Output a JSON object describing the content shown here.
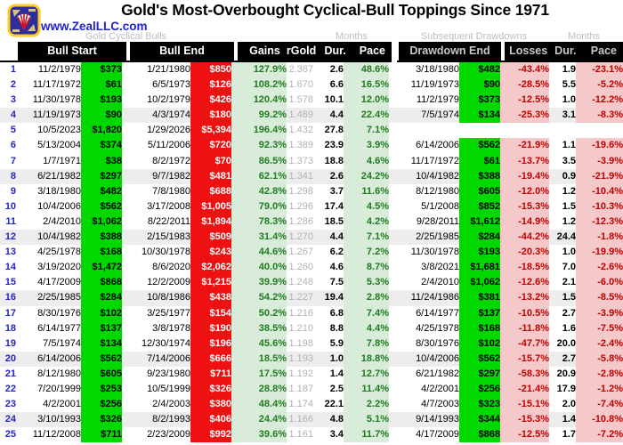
{
  "header": {
    "title": "Gold's Most-Overbought Cyclical-Bull Toppings Since 1971",
    "logo_text": "www.ZealLLC.com"
  },
  "group_labels": {
    "bulls": "Gold Cyclical Bulls",
    "months1": "Months",
    "drawdowns": "Subsequent Drawdowns",
    "months2": "Months"
  },
  "columns": {
    "bull_start": "Bull Start",
    "bull_end": "Bull End",
    "gains": "Gains",
    "rgold": "rGold",
    "dur": "Dur.",
    "pace": "Pace",
    "drawdown_end": "Drawdown End",
    "losses": "Losses",
    "dd_dur": "Dur.",
    "dd_pace": "Pace"
  },
  "colors": {
    "price_start_bg": "#00d800",
    "price_top_bg": "#ee1111",
    "gain_bg": "#d9ecd9",
    "gain_text": "#1f7a1f",
    "loss_bg": "#f5c9c9",
    "loss_text": "#c00000",
    "row_number_text": "#2424cc",
    "rgold_text": "#b2b2b2",
    "header_bg": "#000000",
    "header_drawdown_text": "#c8c8c8",
    "group_label_text": "#bdbdbd",
    "shade_row_bg": "#ededed",
    "logo_text_blue": "#2222cc"
  },
  "chart_data": {
    "type": "table",
    "title": "Gold's Most-Overbought Cyclical-Bull Toppings Since 1971",
    "columns": [
      "#",
      "Bull Start Date",
      "Bull Start Price",
      "Bull End Date",
      "Bull End Price",
      "Gains",
      "rGold",
      "Dur. (Months)",
      "Pace",
      "Drawdown End Date",
      "Drawdown End Price",
      "Losses",
      "Drawdown Dur. (Months)",
      "Drawdown Pace"
    ],
    "rows": [
      {
        "num": "1",
        "bull_start_date": "11/2/1979",
        "bull_start_price": "$373",
        "bull_end_date": "1/21/1980",
        "bull_end_price": "$850",
        "gains": "127.9%",
        "rgold": "2.387",
        "dur_months": "2.6",
        "pace": "48.6%",
        "drawdown_end_date": "3/18/1980",
        "drawdown_end_price": "$482",
        "losses": "-43.4%",
        "dd_dur_months": "1.9",
        "dd_pace": "-23.1%"
      },
      {
        "num": "2",
        "bull_start_date": "11/17/1972",
        "bull_start_price": "$61",
        "bull_end_date": "6/5/1973",
        "bull_end_price": "$126",
        "gains": "108.2%",
        "rgold": "1.670",
        "dur_months": "6.6",
        "pace": "16.5%",
        "drawdown_end_date": "11/19/1973",
        "drawdown_end_price": "$90",
        "losses": "-28.5%",
        "dd_dur_months": "5.5",
        "dd_pace": "-5.2%"
      },
      {
        "num": "3",
        "bull_start_date": "11/30/1978",
        "bull_start_price": "$193",
        "bull_end_date": "10/2/1979",
        "bull_end_price": "$426",
        "gains": "120.4%",
        "rgold": "1.578",
        "dur_months": "10.1",
        "pace": "12.0%",
        "drawdown_end_date": "11/2/1979",
        "drawdown_end_price": "$373",
        "losses": "-12.5%",
        "dd_dur_months": "1.0",
        "dd_pace": "-12.2%"
      },
      {
        "num": "4",
        "bull_start_date": "11/19/1973",
        "bull_start_price": "$90",
        "bull_end_date": "4/3/1974",
        "bull_end_price": "$180",
        "gains": "99.2%",
        "rgold": "1.489",
        "dur_months": "4.4",
        "pace": "22.4%",
        "drawdown_end_date": "7/5/1974",
        "drawdown_end_price": "$134",
        "losses": "-25.3%",
        "dd_dur_months": "3.1",
        "dd_pace": "-8.3%"
      },
      {
        "num": "5",
        "bull_start_date": "10/5/2023",
        "bull_start_price": "$1,820",
        "bull_end_date": "1/29/2026",
        "bull_end_price": "$5,394",
        "gains": "196.4%",
        "rgold": "1.432",
        "dur_months": "27.8",
        "pace": "7.1%",
        "drawdown_end_date": "",
        "drawdown_end_price": "",
        "losses": "",
        "dd_dur_months": "",
        "dd_pace": ""
      },
      {
        "num": "6",
        "bull_start_date": "5/13/2004",
        "bull_start_price": "$374",
        "bull_end_date": "5/11/2006",
        "bull_end_price": "$720",
        "gains": "92.3%",
        "rgold": "1.389",
        "dur_months": "23.9",
        "pace": "3.9%",
        "drawdown_end_date": "6/14/2006",
        "drawdown_end_price": "$562",
        "losses": "-21.9%",
        "dd_dur_months": "1.1",
        "dd_pace": "-19.6%"
      },
      {
        "num": "7",
        "bull_start_date": "1/7/1971",
        "bull_start_price": "$38",
        "bull_end_date": "8/2/1972",
        "bull_end_price": "$70",
        "gains": "86.5%",
        "rgold": "1.373",
        "dur_months": "18.8",
        "pace": "4.6%",
        "drawdown_end_date": "11/17/1972",
        "drawdown_end_price": "$61",
        "losses": "-13.7%",
        "dd_dur_months": "3.5",
        "dd_pace": "-3.9%"
      },
      {
        "num": "8",
        "bull_start_date": "6/21/1982",
        "bull_start_price": "$297",
        "bull_end_date": "9/7/1982",
        "bull_end_price": "$481",
        "gains": "62.1%",
        "rgold": "1.341",
        "dur_months": "2.6",
        "pace": "24.2%",
        "drawdown_end_date": "10/4/1982",
        "drawdown_end_price": "$388",
        "losses": "-19.4%",
        "dd_dur_months": "0.9",
        "dd_pace": "-21.9%"
      },
      {
        "num": "9",
        "bull_start_date": "3/18/1980",
        "bull_start_price": "$482",
        "bull_end_date": "7/8/1980",
        "bull_end_price": "$688",
        "gains": "42.8%",
        "rgold": "1.298",
        "dur_months": "3.7",
        "pace": "11.6%",
        "drawdown_end_date": "8/12/1980",
        "drawdown_end_price": "$605",
        "losses": "-12.0%",
        "dd_dur_months": "1.2",
        "dd_pace": "-10.4%"
      },
      {
        "num": "10",
        "bull_start_date": "10/4/2006",
        "bull_start_price": "$562",
        "bull_end_date": "3/17/2008",
        "bull_end_price": "$1,005",
        "gains": "79.0%",
        "rgold": "1.296",
        "dur_months": "17.4",
        "pace": "4.5%",
        "drawdown_end_date": "5/1/2008",
        "drawdown_end_price": "$852",
        "losses": "-15.3%",
        "dd_dur_months": "1.5",
        "dd_pace": "-10.3%"
      },
      {
        "num": "11",
        "bull_start_date": "2/4/2010",
        "bull_start_price": "$1,062",
        "bull_end_date": "8/22/2011",
        "bull_end_price": "$1,894",
        "gains": "78.3%",
        "rgold": "1.286",
        "dur_months": "18.5",
        "pace": "4.2%",
        "drawdown_end_date": "9/28/2011",
        "drawdown_end_price": "$1,612",
        "losses": "-14.9%",
        "dd_dur_months": "1.2",
        "dd_pace": "-12.3%"
      },
      {
        "num": "12",
        "bull_start_date": "10/4/1982",
        "bull_start_price": "$388",
        "bull_end_date": "2/15/1983",
        "bull_end_price": "$509",
        "gains": "31.4%",
        "rgold": "1.270",
        "dur_months": "4.4",
        "pace": "7.1%",
        "drawdown_end_date": "2/25/1985",
        "drawdown_end_price": "$284",
        "losses": "-44.2%",
        "dd_dur_months": "24.4",
        "dd_pace": "-1.8%"
      },
      {
        "num": "13",
        "bull_start_date": "4/25/1978",
        "bull_start_price": "$168",
        "bull_end_date": "10/30/1978",
        "bull_end_price": "$243",
        "gains": "44.6%",
        "rgold": "1.267",
        "dur_months": "6.2",
        "pace": "7.2%",
        "drawdown_end_date": "11/30/1978",
        "drawdown_end_price": "$193",
        "losses": "-20.3%",
        "dd_dur_months": "1.0",
        "dd_pace": "-19.9%"
      },
      {
        "num": "14",
        "bull_start_date": "3/19/2020",
        "bull_start_price": "$1,472",
        "bull_end_date": "8/6/2020",
        "bull_end_price": "$2,062",
        "gains": "40.0%",
        "rgold": "1.260",
        "dur_months": "4.6",
        "pace": "8.7%",
        "drawdown_end_date": "3/8/2021",
        "drawdown_end_price": "$1,681",
        "losses": "-18.5%",
        "dd_dur_months": "7.0",
        "dd_pace": "-2.6%"
      },
      {
        "num": "15",
        "bull_start_date": "4/17/2009",
        "bull_start_price": "$868",
        "bull_end_date": "12/2/2009",
        "bull_end_price": "$1,215",
        "gains": "39.9%",
        "rgold": "1.248",
        "dur_months": "7.5",
        "pace": "5.3%",
        "drawdown_end_date": "2/4/2010",
        "drawdown_end_price": "$1,062",
        "losses": "-12.6%",
        "dd_dur_months": "2.1",
        "dd_pace": "-6.0%"
      },
      {
        "num": "16",
        "bull_start_date": "2/25/1985",
        "bull_start_price": "$284",
        "bull_end_date": "10/8/1986",
        "bull_end_price": "$438",
        "gains": "54.2%",
        "rgold": "1.227",
        "dur_months": "19.4",
        "pace": "2.8%",
        "drawdown_end_date": "11/24/1986",
        "drawdown_end_price": "$381",
        "losses": "-13.2%",
        "dd_dur_months": "1.5",
        "dd_pace": "-8.5%"
      },
      {
        "num": "17",
        "bull_start_date": "8/30/1976",
        "bull_start_price": "$102",
        "bull_end_date": "3/25/1977",
        "bull_end_price": "$154",
        "gains": "50.2%",
        "rgold": "1.216",
        "dur_months": "6.8",
        "pace": "7.4%",
        "drawdown_end_date": "6/14/1977",
        "drawdown_end_price": "$137",
        "losses": "-10.5%",
        "dd_dur_months": "2.7",
        "dd_pace": "-3.9%"
      },
      {
        "num": "18",
        "bull_start_date": "6/14/1977",
        "bull_start_price": "$137",
        "bull_end_date": "3/8/1978",
        "bull_end_price": "$190",
        "gains": "38.5%",
        "rgold": "1.210",
        "dur_months": "8.8",
        "pace": "4.4%",
        "drawdown_end_date": "4/25/1978",
        "drawdown_end_price": "$168",
        "losses": "-11.8%",
        "dd_dur_months": "1.6",
        "dd_pace": "-7.5%"
      },
      {
        "num": "19",
        "bull_start_date": "7/5/1974",
        "bull_start_price": "$134",
        "bull_end_date": "12/30/1974",
        "bull_end_price": "$196",
        "gains": "45.6%",
        "rgold": "1.198",
        "dur_months": "5.9",
        "pace": "7.8%",
        "drawdown_end_date": "8/30/1976",
        "drawdown_end_price": "$102",
        "losses": "-47.7%",
        "dd_dur_months": "20.0",
        "dd_pace": "-2.4%"
      },
      {
        "num": "20",
        "bull_start_date": "6/14/2006",
        "bull_start_price": "$562",
        "bull_end_date": "7/14/2006",
        "bull_end_price": "$666",
        "gains": "18.5%",
        "rgold": "1.193",
        "dur_months": "1.0",
        "pace": "18.8%",
        "drawdown_end_date": "10/4/2006",
        "drawdown_end_price": "$562",
        "losses": "-15.7%",
        "dd_dur_months": "2.7",
        "dd_pace": "-5.8%"
      },
      {
        "num": "21",
        "bull_start_date": "8/12/1980",
        "bull_start_price": "$605",
        "bull_end_date": "9/23/1980",
        "bull_end_price": "$711",
        "gains": "17.5%",
        "rgold": "1.192",
        "dur_months": "1.4",
        "pace": "12.7%",
        "drawdown_end_date": "6/21/1982",
        "drawdown_end_price": "$297",
        "losses": "-58.3%",
        "dd_dur_months": "20.9",
        "dd_pace": "-2.8%"
      },
      {
        "num": "22",
        "bull_start_date": "7/20/1999",
        "bull_start_price": "$253",
        "bull_end_date": "10/5/1999",
        "bull_end_price": "$326",
        "gains": "28.8%",
        "rgold": "1.187",
        "dur_months": "2.5",
        "pace": "11.4%",
        "drawdown_end_date": "4/2/2001",
        "drawdown_end_price": "$256",
        "losses": "-21.4%",
        "dd_dur_months": "17.9",
        "dd_pace": "-1.2%"
      },
      {
        "num": "23",
        "bull_start_date": "4/2/2001",
        "bull_start_price": "$256",
        "bull_end_date": "2/4/2003",
        "bull_end_price": "$380",
        "gains": "48.4%",
        "rgold": "1.174",
        "dur_months": "22.1",
        "pace": "2.2%",
        "drawdown_end_date": "4/7/2003",
        "drawdown_end_price": "$323",
        "losses": "-15.1%",
        "dd_dur_months": "2.0",
        "dd_pace": "-7.4%"
      },
      {
        "num": "24",
        "bull_start_date": "3/10/1993",
        "bull_start_price": "$326",
        "bull_end_date": "8/2/1993",
        "bull_end_price": "$406",
        "gains": "24.4%",
        "rgold": "1.166",
        "dur_months": "4.8",
        "pace": "5.1%",
        "drawdown_end_date": "9/14/1993",
        "drawdown_end_price": "$344",
        "losses": "-15.3%",
        "dd_dur_months": "1.4",
        "dd_pace": "-10.8%"
      },
      {
        "num": "25",
        "bull_start_date": "11/12/2008",
        "bull_start_price": "$711",
        "bull_end_date": "2/23/2009",
        "bull_end_price": "$992",
        "gains": "39.6%",
        "rgold": "1.161",
        "dur_months": "3.4",
        "pace": "11.7%",
        "drawdown_end_date": "4/17/2009",
        "drawdown_end_price": "$868",
        "losses": "-12.5%",
        "dd_dur_months": "1.7",
        "dd_pace": "-7.2%"
      }
    ]
  }
}
